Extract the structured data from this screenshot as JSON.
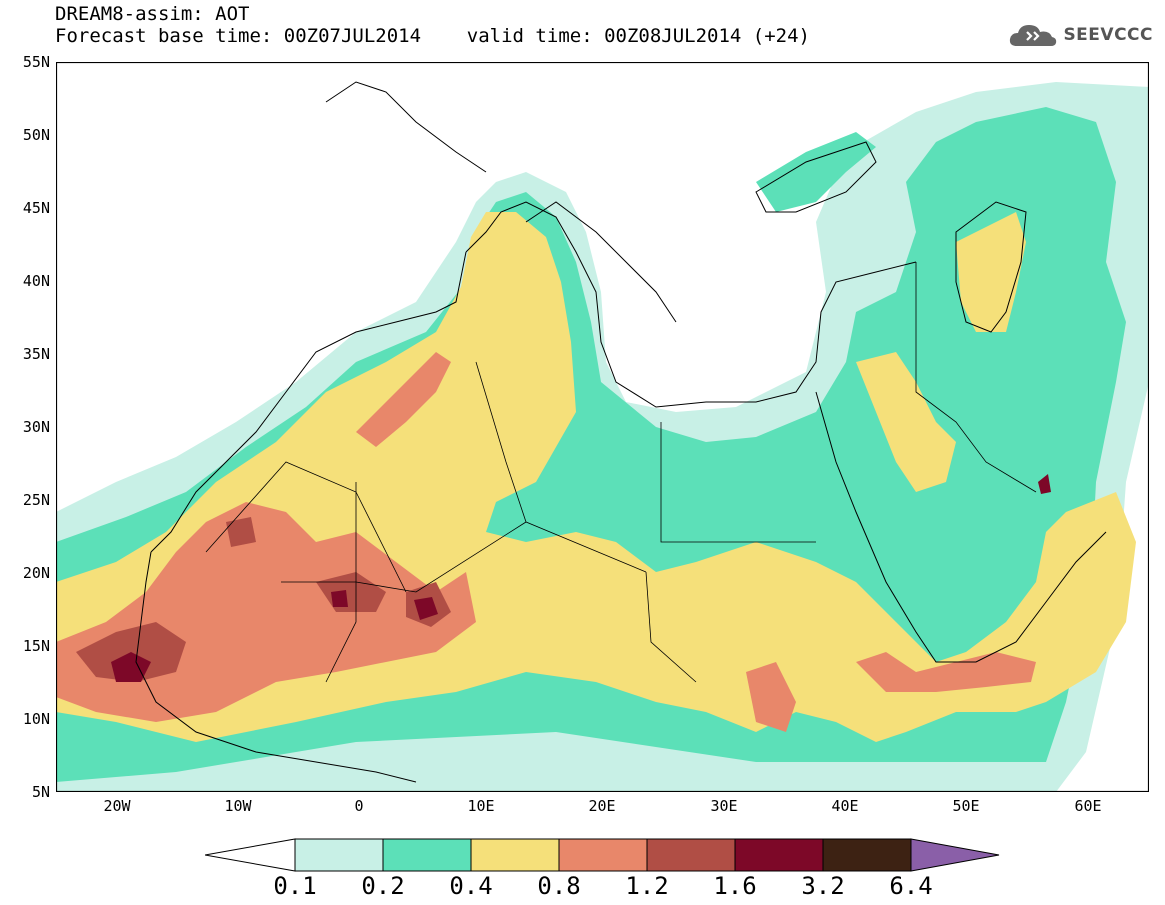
{
  "header": {
    "title_line1": "DREAM8-assim: AOT",
    "title_line2": "Forecast base time: 00Z07JUL2014    valid time: 00Z08JUL2014 (+24)",
    "brand": "SEEVCCC"
  },
  "map": {
    "lat_range": [
      5,
      55
    ],
    "lon_range": [
      -25,
      65
    ],
    "lat_ticks": [
      "55N",
      "50N",
      "45N",
      "40N",
      "35N",
      "30N",
      "25N",
      "20N",
      "15N",
      "10N",
      "5N"
    ],
    "lon_ticks": [
      "20W",
      "10W",
      "0",
      "10E",
      "20E",
      "30E",
      "40E",
      "50E",
      "60E"
    ],
    "lat_values": [
      55,
      50,
      45,
      40,
      35,
      30,
      25,
      20,
      15,
      10,
      5
    ],
    "lon_values": [
      -20,
      -10,
      0,
      10,
      20,
      30,
      40,
      50,
      60
    ]
  },
  "colorbar": {
    "labels": [
      "0.1",
      "0.2",
      "0.4",
      "0.8",
      "1.2",
      "1.6",
      "3.2",
      "6.4"
    ],
    "colors": [
      "#c8f0e6",
      "#5ce0b8",
      "#f5e07a",
      "#e8876a",
      "#b04e45",
      "#7d0828",
      "#3d2213",
      "#8a5fa8"
    ],
    "under_color": "#ffffff"
  },
  "colors": {
    "c01": "#c8f0e6",
    "c02": "#5ce0b8",
    "c04": "#f5e07a",
    "c08": "#e8876a",
    "c12": "#b04e45",
    "c16": "#7d0828",
    "c32": "#3d2213",
    "c64": "#8a5fa8"
  }
}
